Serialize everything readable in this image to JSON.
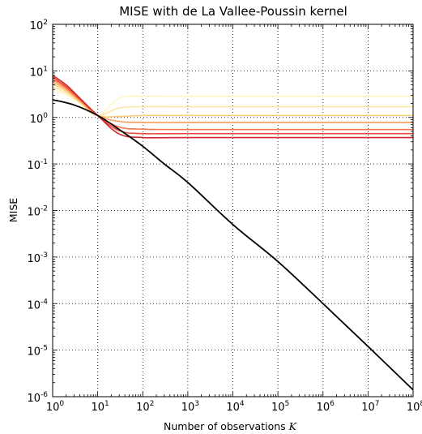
{
  "chart_data": {
    "type": "line",
    "title": "MISE with de La Vallee-Poussin kernel",
    "xlabel": "Number of observations",
    "xlabel_symbol": "K",
    "ylabel": "MISE",
    "xscale": "log",
    "yscale": "log",
    "xlim": [
      1,
      100000000
    ],
    "ylim": [
      1e-06,
      100
    ],
    "grid": true,
    "x_tick_exponents": [
      "0",
      "1",
      "2",
      "3",
      "4",
      "5",
      "6",
      "7",
      "8"
    ],
    "y_tick_exponents": [
      "2",
      "1",
      "0",
      "-1",
      "-2",
      "-3",
      "-4",
      "-5",
      "-6"
    ],
    "tick_base": "10",
    "series": [
      {
        "color": "#fff5c0",
        "x": [
          1,
          2,
          4,
          10,
          30,
          100,
          1000,
          100000000
        ],
        "y": [
          3.9,
          3.1,
          2.0,
          1.1,
          2.6,
          2.85,
          2.85,
          2.85
        ]
      },
      {
        "color": "#fde6a2",
        "x": [
          1,
          2,
          4,
          10,
          30,
          100,
          1000,
          100000000
        ],
        "y": [
          4.5,
          3.4,
          2.1,
          1.1,
          1.6,
          1.7,
          1.7,
          1.7
        ]
      },
      {
        "color": "#fdc97a",
        "x": [
          1,
          2,
          4,
          10,
          30,
          100,
          1000,
          100000000
        ],
        "y": [
          5.2,
          3.7,
          2.2,
          1.1,
          1.05,
          1.1,
          1.1,
          1.1
        ]
      },
      {
        "color": "#fba05a",
        "x": [
          1,
          2,
          4,
          10,
          30,
          100,
          1000,
          100000000
        ],
        "y": [
          5.8,
          4.0,
          2.3,
          1.1,
          0.82,
          0.78,
          0.78,
          0.78
        ]
      },
      {
        "color": "#f6754b",
        "x": [
          1,
          2,
          4,
          10,
          30,
          100,
          1000,
          100000000
        ],
        "y": [
          6.6,
          4.3,
          2.4,
          1.1,
          0.62,
          0.56,
          0.55,
          0.55
        ]
      },
      {
        "color": "#ea4a3a",
        "x": [
          1,
          2,
          4,
          10,
          30,
          100,
          1000,
          100000000
        ],
        "y": [
          7.3,
          4.6,
          2.5,
          1.1,
          0.52,
          0.45,
          0.45,
          0.45
        ]
      },
      {
        "color": "#d12a2f",
        "x": [
          1,
          2,
          4,
          10,
          30,
          100,
          1000,
          100000000
        ],
        "y": [
          8.0,
          5.0,
          2.6,
          1.1,
          0.44,
          0.37,
          0.37,
          0.37
        ]
      },
      {
        "color": "#000000",
        "x": [
          1,
          3,
          10,
          30,
          100,
          300,
          1000,
          10000,
          100000,
          1000000,
          10000000,
          100000000
        ],
        "y": [
          2.4,
          1.85,
          1.1,
          0.55,
          0.24,
          0.1,
          0.04,
          0.005,
          0.0008,
          0.0001,
          1.2e-05,
          1.4e-06
        ]
      }
    ]
  }
}
